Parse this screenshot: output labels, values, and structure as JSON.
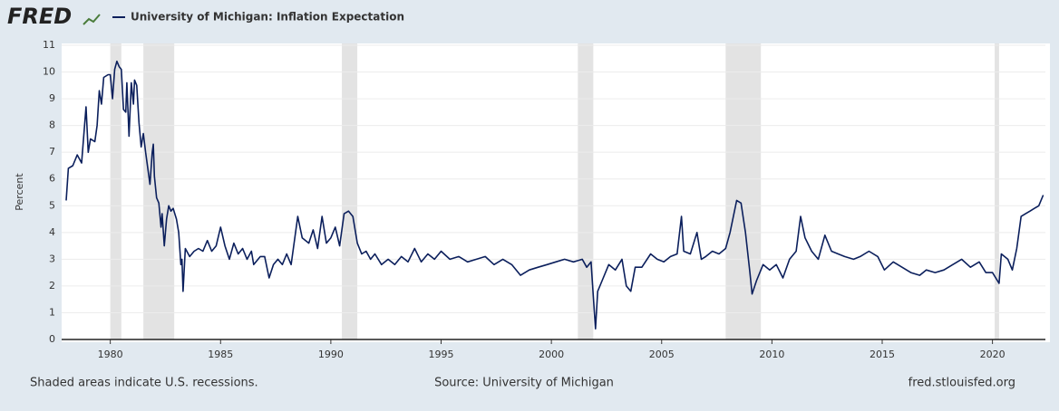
{
  "chart_data": {
    "type": "line",
    "logo": "FRED",
    "ylabel": "Percent",
    "footer_left": "Shaded areas indicate U.S. recessions.",
    "footer_center": "Source: University of Michigan",
    "footer_right": "fred.stlouisfed.org",
    "xlim": [
      1978,
      2022.4
    ],
    "xticks": [
      1980,
      1985,
      1990,
      1995,
      2000,
      2005,
      2010,
      2015,
      2020
    ],
    "ylim": [
      0,
      11
    ],
    "yticks": [
      0,
      1,
      2,
      3,
      4,
      5,
      6,
      7,
      8,
      9,
      10,
      11
    ],
    "grid": true,
    "recessions": [
      [
        1980.0,
        1980.5
      ],
      [
        1981.5,
        1982.9
      ],
      [
        1990.5,
        1991.2
      ],
      [
        2001.2,
        2001.9
      ],
      [
        2007.9,
        2009.5
      ],
      [
        2020.1,
        2020.3
      ]
    ],
    "x": [
      1978.0,
      1978.1,
      1978.3,
      1978.5,
      1978.7,
      1978.9,
      1979.0,
      1979.1,
      1979.3,
      1979.4,
      1979.5,
      1979.6,
      1979.7,
      1979.9,
      1980.0,
      1980.1,
      1980.2,
      1980.3,
      1980.4,
      1980.5,
      1980.6,
      1980.7,
      1980.75,
      1980.85,
      1980.95,
      1981.05,
      1981.1,
      1981.2,
      1981.3,
      1981.4,
      1981.5,
      1981.6,
      1981.7,
      1981.8,
      1981.9,
      1981.95,
      1982.0,
      1982.1,
      1982.2,
      1982.3,
      1982.35,
      1982.45,
      1982.55,
      1982.65,
      1982.75,
      1982.85,
      1983.0,
      1983.1,
      1983.2,
      1983.25,
      1983.3,
      1983.4,
      1983.6,
      1983.8,
      1984.0,
      1984.2,
      1984.4,
      1984.6,
      1984.8,
      1985.0,
      1985.2,
      1985.4,
      1985.6,
      1985.8,
      1986.0,
      1986.2,
      1986.4,
      1986.5,
      1986.8,
      1987.0,
      1987.2,
      1987.4,
      1987.6,
      1987.8,
      1988.0,
      1988.2,
      1988.5,
      1988.7,
      1989.0,
      1989.2,
      1989.4,
      1989.6,
      1989.8,
      1990.0,
      1990.2,
      1990.4,
      1990.6,
      1990.8,
      1991.0,
      1991.2,
      1991.4,
      1991.6,
      1991.8,
      1992.0,
      1992.3,
      1992.6,
      1992.9,
      1993.2,
      1993.5,
      1993.8,
      1994.1,
      1994.4,
      1994.7,
      1995.0,
      1995.4,
      1995.8,
      1996.2,
      1996.6,
      1997.0,
      1997.4,
      1997.8,
      1998.2,
      1998.6,
      1999.0,
      1999.4,
      1999.8,
      2000.2,
      2000.6,
      2001.0,
      2001.4,
      2001.6,
      2001.8,
      2001.9,
      2002.0,
      2002.1,
      2002.3,
      2002.6,
      2002.9,
      2003.2,
      2003.4,
      2003.6,
      2003.8,
      2004.1,
      2004.5,
      2004.8,
      2005.1,
      2005.4,
      2005.7,
      2005.9,
      2006.0,
      2006.3,
      2006.6,
      2006.8,
      2007.0,
      2007.3,
      2007.6,
      2007.9,
      2008.1,
      2008.4,
      2008.6,
      2008.8,
      2009.0,
      2009.1,
      2009.3,
      2009.6,
      2009.9,
      2010.2,
      2010.5,
      2010.8,
      2011.1,
      2011.3,
      2011.5,
      2011.8,
      2012.1,
      2012.4,
      2012.7,
      2013.0,
      2013.3,
      2013.7,
      2014.0,
      2014.4,
      2014.8,
      2015.1,
      2015.5,
      2015.9,
      2016.3,
      2016.7,
      2017.0,
      2017.4,
      2017.8,
      2018.2,
      2018.6,
      2019.0,
      2019.4,
      2019.7,
      2020.0,
      2020.3,
      2020.4,
      2020.7,
      2020.9,
      2021.1,
      2021.3,
      2021.5,
      2021.7,
      2021.9,
      2022.1,
      2022.3
    ],
    "series": [
      {
        "name": "University of Michigan: Inflation Expectation",
        "color": "#0b1f5c",
        "values": [
          5.2,
          6.4,
          6.5,
          6.9,
          6.6,
          8.7,
          7.0,
          7.5,
          7.4,
          8.0,
          9.3,
          8.8,
          9.8,
          9.9,
          9.9,
          9.0,
          10.1,
          10.4,
          10.2,
          10.1,
          8.6,
          8.5,
          9.6,
          7.6,
          9.6,
          8.8,
          9.7,
          9.5,
          8.1,
          7.2,
          7.7,
          7.0,
          6.4,
          5.8,
          7.0,
          7.3,
          6.1,
          5.3,
          5.1,
          4.2,
          4.7,
          3.5,
          4.5,
          5.0,
          4.8,
          4.9,
          4.5,
          4.0,
          2.8,
          3.0,
          1.8,
          3.4,
          3.1,
          3.3,
          3.4,
          3.3,
          3.7,
          3.3,
          3.5,
          4.2,
          3.5,
          3.0,
          3.6,
          3.2,
          3.4,
          3.0,
          3.3,
          2.8,
          3.1,
          3.1,
          2.3,
          2.8,
          3.0,
          2.8,
          3.2,
          2.8,
          4.6,
          3.8,
          3.6,
          4.1,
          3.4,
          4.6,
          3.6,
          3.8,
          4.2,
          3.5,
          4.7,
          4.8,
          4.6,
          3.6,
          3.2,
          3.3,
          3.0,
          3.2,
          2.8,
          3.0,
          2.8,
          3.1,
          2.9,
          3.4,
          2.9,
          3.2,
          3.0,
          3.3,
          3.0,
          3.1,
          2.9,
          3.0,
          3.1,
          2.8,
          3.0,
          2.8,
          2.4,
          2.6,
          2.7,
          2.8,
          2.9,
          3.0,
          2.9,
          3.0,
          2.7,
          2.9,
          1.6,
          0.4,
          1.8,
          2.2,
          2.8,
          2.6,
          3.0,
          2.0,
          1.8,
          2.7,
          2.7,
          3.2,
          3.0,
          2.9,
          3.1,
          3.2,
          4.6,
          3.3,
          3.2,
          4.0,
          3.0,
          3.1,
          3.3,
          3.2,
          3.4,
          4.0,
          5.2,
          5.1,
          4.0,
          2.5,
          1.7,
          2.2,
          2.8,
          2.6,
          2.8,
          2.3,
          3.0,
          3.3,
          4.6,
          3.8,
          3.3,
          3.0,
          3.9,
          3.3,
          3.2,
          3.1,
          3.0,
          3.1,
          3.3,
          3.1,
          2.6,
          2.9,
          2.7,
          2.5,
          2.4,
          2.6,
          2.5,
          2.6,
          2.8,
          3.0,
          2.7,
          2.9,
          2.5,
          2.5,
          2.1,
          3.2,
          3.0,
          2.6,
          3.4,
          4.6,
          4.7,
          4.8,
          4.9,
          5.0,
          5.4
        ]
      }
    ]
  }
}
